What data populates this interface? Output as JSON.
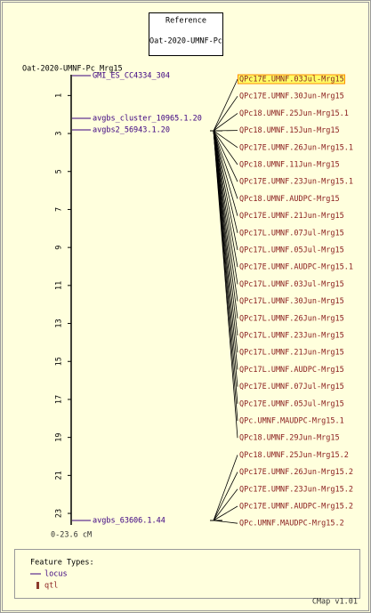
{
  "reference": {
    "title": "Reference",
    "name": "Oat-2020-UMNF-Pc"
  },
  "map": {
    "title": "Oat-2020-UMNF-Pc_Mrg15",
    "ticks": [
      1,
      3,
      5,
      7,
      9,
      11,
      13,
      15,
      17,
      19,
      21,
      23
    ],
    "range": "0-23.6 cM",
    "loci": [
      "GMI_ES_CC4334_304",
      "avgbs_cluster_10965.1.20",
      "avgbs2_56943.1.20",
      "avgbs_63606.1.44"
    ],
    "qtls": [
      "QPc17E.UMNF.03Jul-Mrg15",
      "QPc17E.UMNF.30Jun-Mrg15",
      "QPc18.UMNF.25Jun-Mrg15.1",
      "QPc18.UMNF.15Jun-Mrg15",
      "QPc17E.UMNF.26Jun-Mrg15.1",
      "QPc18.UMNF.11Jun-Mrg15",
      "QPc17E.UMNF.23Jun-Mrg15.1",
      "QPc18.UMNF.AUDPC-Mrg15",
      "QPc17E.UMNF.21Jun-Mrg15",
      "QPc17L.UMNF.07Jul-Mrg15",
      "QPc17L.UMNF.05Jul-Mrg15",
      "QPc17E.UMNF.AUDPC-Mrg15.1",
      "QPc17L.UMNF.03Jul-Mrg15",
      "QPc17L.UMNF.30Jun-Mrg15",
      "QPc17L.UMNF.26Jun-Mrg15",
      "QPc17L.UMNF.23Jun-Mrg15",
      "QPc17L.UMNF.21Jun-Mrg15",
      "QPc17L.UMNF.AUDPC-Mrg15",
      "QPc17E.UMNF.07Jul-Mrg15",
      "QPc17E.UMNF.05Jul-Mrg15",
      "QPc.UMNF.MAUDPC-Mrg15.1",
      "QPc18.UMNF.29Jun-Mrg15",
      "QPc18.UMNF.25Jun-Mrg15.2",
      "QPc17E.UMNF.26Jun-Mrg15.2",
      "QPc17E.UMNF.23Jun-Mrg15.2",
      "QPc17E.UMNF.AUDPC-Mrg15.2",
      "QPc.UMNF.MAUDPC-Mrg15.2"
    ]
  },
  "legend": {
    "title": "Feature Types:",
    "items": [
      "locus",
      "qtl"
    ]
  },
  "footer": "CMap v1.01"
}
